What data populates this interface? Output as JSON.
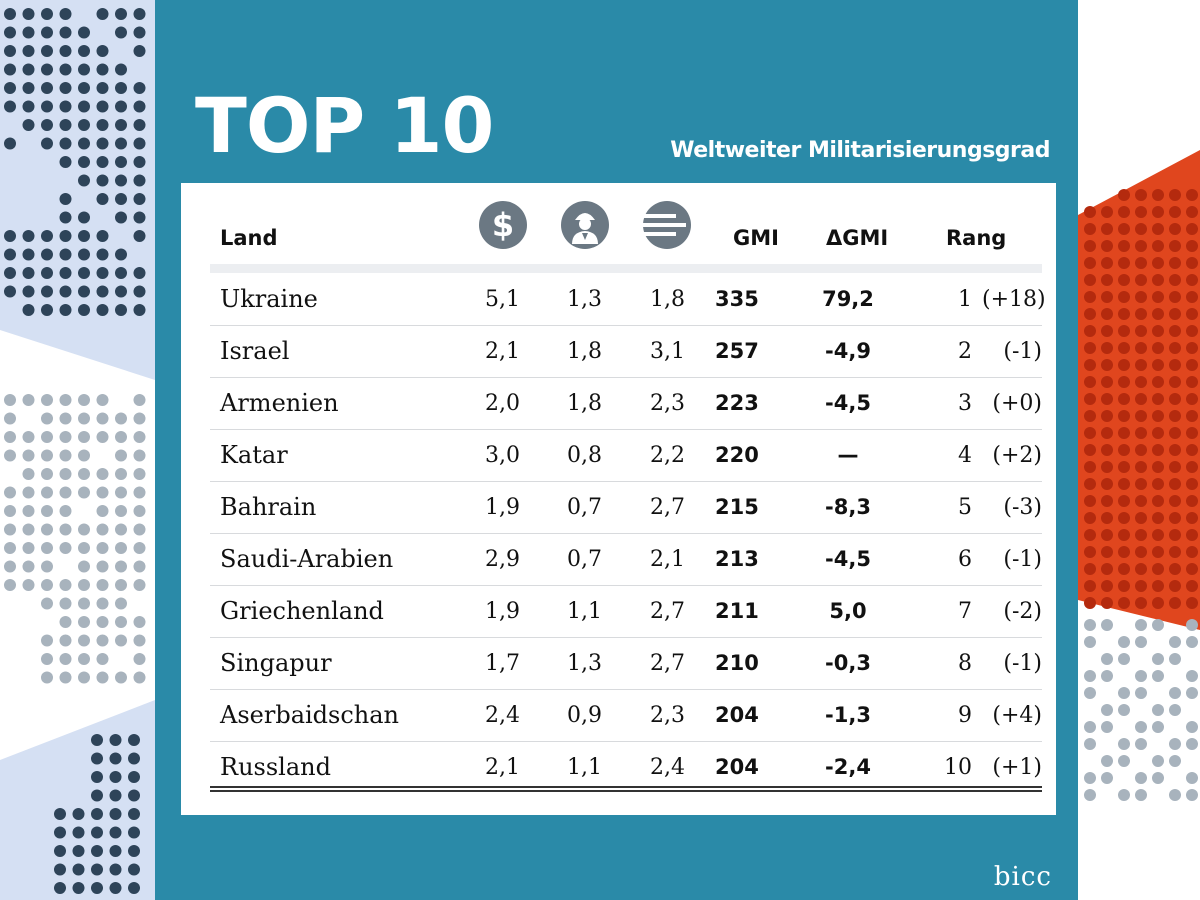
{
  "header": {
    "title": "TOP 10",
    "subtitle": "Weltweiter Militarisierungsgrad",
    "credit": "bicc"
  },
  "colors": {
    "panel": "#2a8aa8",
    "accent_red": "#e0461e",
    "dot_dark": "#2e4459",
    "dot_light": "#a8b3bd",
    "band_light": "#d5e0f3"
  },
  "table": {
    "columns": {
      "land": "Land",
      "financial_icon": "dollar-coin-icon",
      "personnel_icon": "soldier-icon",
      "heavy_weapons_icon": "heavy-weapons-icon",
      "gmi": "GMI",
      "delta_gmi": "ΔGMI",
      "rang": "Rang"
    },
    "rows": [
      {
        "land": "Ukraine",
        "fin": "5,1",
        "per": "1,3",
        "hw": "1,8",
        "gmi": "335",
        "dgmi": "79,2",
        "rang": "1",
        "chg": "(+18)"
      },
      {
        "land": "Israel",
        "fin": "2,1",
        "per": "1,8",
        "hw": "3,1",
        "gmi": "257",
        "dgmi": "-4,9",
        "rang": "2",
        "chg": "(-1)"
      },
      {
        "land": "Armenien",
        "fin": "2,0",
        "per": "1,8",
        "hw": "2,3",
        "gmi": "223",
        "dgmi": "-4,5",
        "rang": "3",
        "chg": "(+0)"
      },
      {
        "land": "Katar",
        "fin": "3,0",
        "per": "0,8",
        "hw": "2,2",
        "gmi": "220",
        "dgmi": "—",
        "rang": "4",
        "chg": "(+2)"
      },
      {
        "land": "Bahrain",
        "fin": "1,9",
        "per": "0,7",
        "hw": "2,7",
        "gmi": "215",
        "dgmi": "-8,3",
        "rang": "5",
        "chg": "(-3)"
      },
      {
        "land": "Saudi-Arabien",
        "fin": "2,9",
        "per": "0,7",
        "hw": "2,1",
        "gmi": "213",
        "dgmi": "-4,5",
        "rang": "6",
        "chg": "(-1)"
      },
      {
        "land": "Griechenland",
        "fin": "1,9",
        "per": "1,1",
        "hw": "2,7",
        "gmi": "211",
        "dgmi": "5,0",
        "rang": "7",
        "chg": "(-2)"
      },
      {
        "land": "Singapur",
        "fin": "1,7",
        "per": "1,3",
        "hw": "2,7",
        "gmi": "210",
        "dgmi": "-0,3",
        "rang": "8",
        "chg": "(-1)"
      },
      {
        "land": "Aserbaidschan",
        "fin": "2,4",
        "per": "0,9",
        "hw": "2,3",
        "gmi": "204",
        "dgmi": "-1,3",
        "rang": "9",
        "chg": "(+4)"
      },
      {
        "land": "Russland",
        "fin": "2,1",
        "per": "1,1",
        "hw": "2,4",
        "gmi": "204",
        "dgmi": "-2,4",
        "rang": "10",
        "chg": "(+1)"
      }
    ]
  },
  "chart_data": {
    "type": "table",
    "title": "TOP 10",
    "subtitle": "Weltweiter Militarisierungsgrad",
    "columns": [
      "Land",
      "",
      "",
      "",
      "GMI",
      "ΔGMI",
      "Rang"
    ],
    "rows": [
      [
        "Ukraine",
        5.1,
        1.3,
        1.8,
        335,
        79.2,
        "1 (+18)"
      ],
      [
        "Israel",
        2.1,
        1.8,
        3.1,
        257,
        -4.9,
        "2 (-1)"
      ],
      [
        "Armenien",
        2.0,
        1.8,
        2.3,
        223,
        -4.5,
        "3 (+0)"
      ],
      [
        "Katar",
        3.0,
        0.8,
        2.2,
        220,
        null,
        "4 (+2)"
      ],
      [
        "Bahrain",
        1.9,
        0.7,
        2.7,
        215,
        -8.3,
        "5 (-3)"
      ],
      [
        "Saudi-Arabien",
        2.9,
        0.7,
        2.1,
        213,
        -4.5,
        "6 (-1)"
      ],
      [
        "Griechenland",
        1.9,
        1.1,
        2.7,
        211,
        5.0,
        "7 (-2)"
      ],
      [
        "Singapur",
        1.7,
        1.3,
        2.7,
        210,
        -0.3,
        "8 (-1)"
      ],
      [
        "Aserbaidschan",
        2.4,
        0.9,
        2.3,
        204,
        -1.3,
        "9 (+4)"
      ],
      [
        "Russland",
        2.1,
        1.1,
        2.4,
        204,
        -2.4,
        "10 (+1)"
      ]
    ]
  }
}
